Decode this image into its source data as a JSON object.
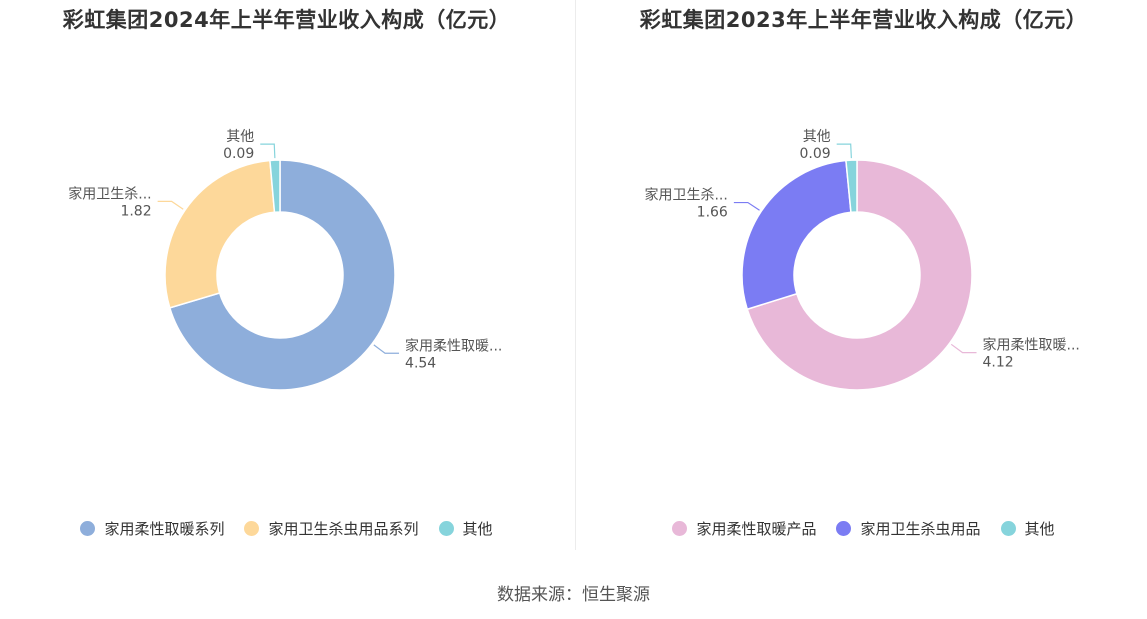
{
  "source": "数据来源：恒生聚源",
  "chart_data": [
    {
      "type": "pie",
      "donut": true,
      "title": "彩虹集团2024年上半年营业收入构成（亿元）",
      "categories": [
        "家用柔性取暖系列",
        "家用卫生杀虫用品系列",
        "其他"
      ],
      "short_labels": [
        "家用柔性取暖...",
        "家用卫生杀...",
        "其他"
      ],
      "values": [
        4.54,
        1.82,
        0.09
      ],
      "value_labels": [
        "4.54",
        "1.82",
        "0.09"
      ],
      "colors": [
        "#8eaedb",
        "#fdd89a",
        "#86d4dc"
      ],
      "legend_position": "bottom"
    },
    {
      "type": "pie",
      "donut": true,
      "title": "彩虹集团2023年上半年营业收入构成（亿元）",
      "categories": [
        "家用柔性取暖产品",
        "家用卫生杀虫用品",
        "其他"
      ],
      "short_labels": [
        "家用柔性取暖...",
        "家用卫生杀...",
        "其他"
      ],
      "values": [
        4.12,
        1.66,
        0.09
      ],
      "value_labels": [
        "4.12",
        "1.66",
        "0.09"
      ],
      "colors": [
        "#e8b8d8",
        "#7b7cf3",
        "#86d4dc"
      ],
      "legend_position": "bottom"
    }
  ]
}
